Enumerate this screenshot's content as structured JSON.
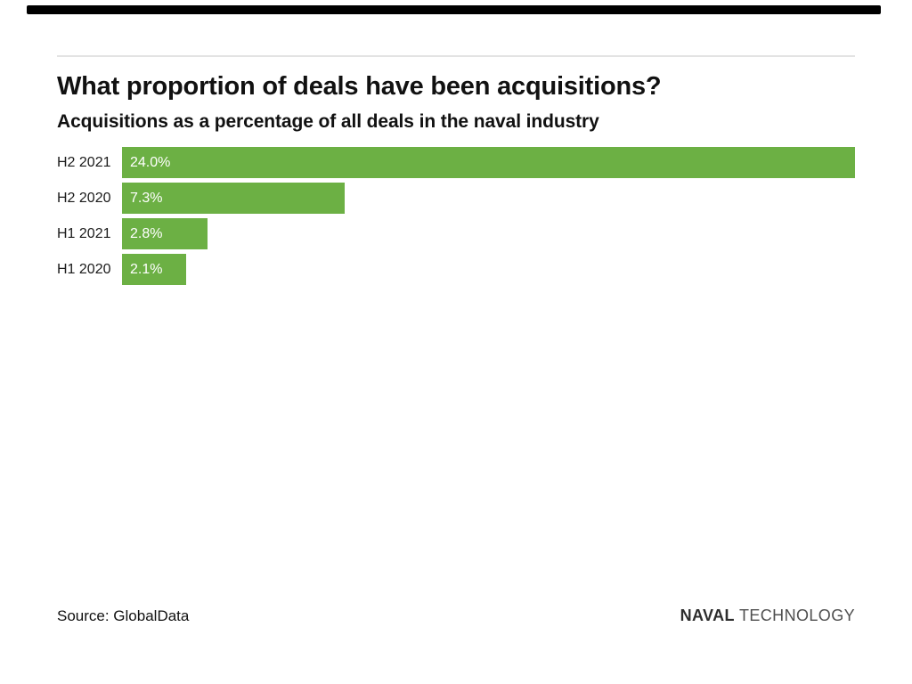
{
  "page": {
    "background_color": "#ffffff",
    "accent_bar_color": "#000000",
    "divider_color": "#e3e3e3"
  },
  "header": {
    "title": "What proportion of deals have been acquisitions?",
    "subtitle": "Acquisitions as a percentage of all deals in the naval industry"
  },
  "chart_data": {
    "type": "bar",
    "orientation": "horizontal",
    "title": "What proportion of deals have been acquisitions?",
    "subtitle": "Acquisitions as a percentage of all deals in the naval industry",
    "categories": [
      "H2 2021",
      "H2 2020",
      "H1 2021",
      "H1 2020"
    ],
    "values": [
      24.0,
      7.3,
      2.8,
      2.1
    ],
    "value_labels": [
      "24.0%",
      "7.3%",
      "2.8%",
      "2.1%"
    ],
    "xlim": [
      0,
      24.0
    ],
    "grid": false,
    "legend": false,
    "bar_color": "#6cb044",
    "value_label_color": "#ffffff",
    "category_label_color": "#1a1a1a"
  },
  "footer": {
    "source": "Source: GlobalData",
    "brand": {
      "bold": "NAVAL",
      "regular": " TECHNOLOGY"
    }
  }
}
